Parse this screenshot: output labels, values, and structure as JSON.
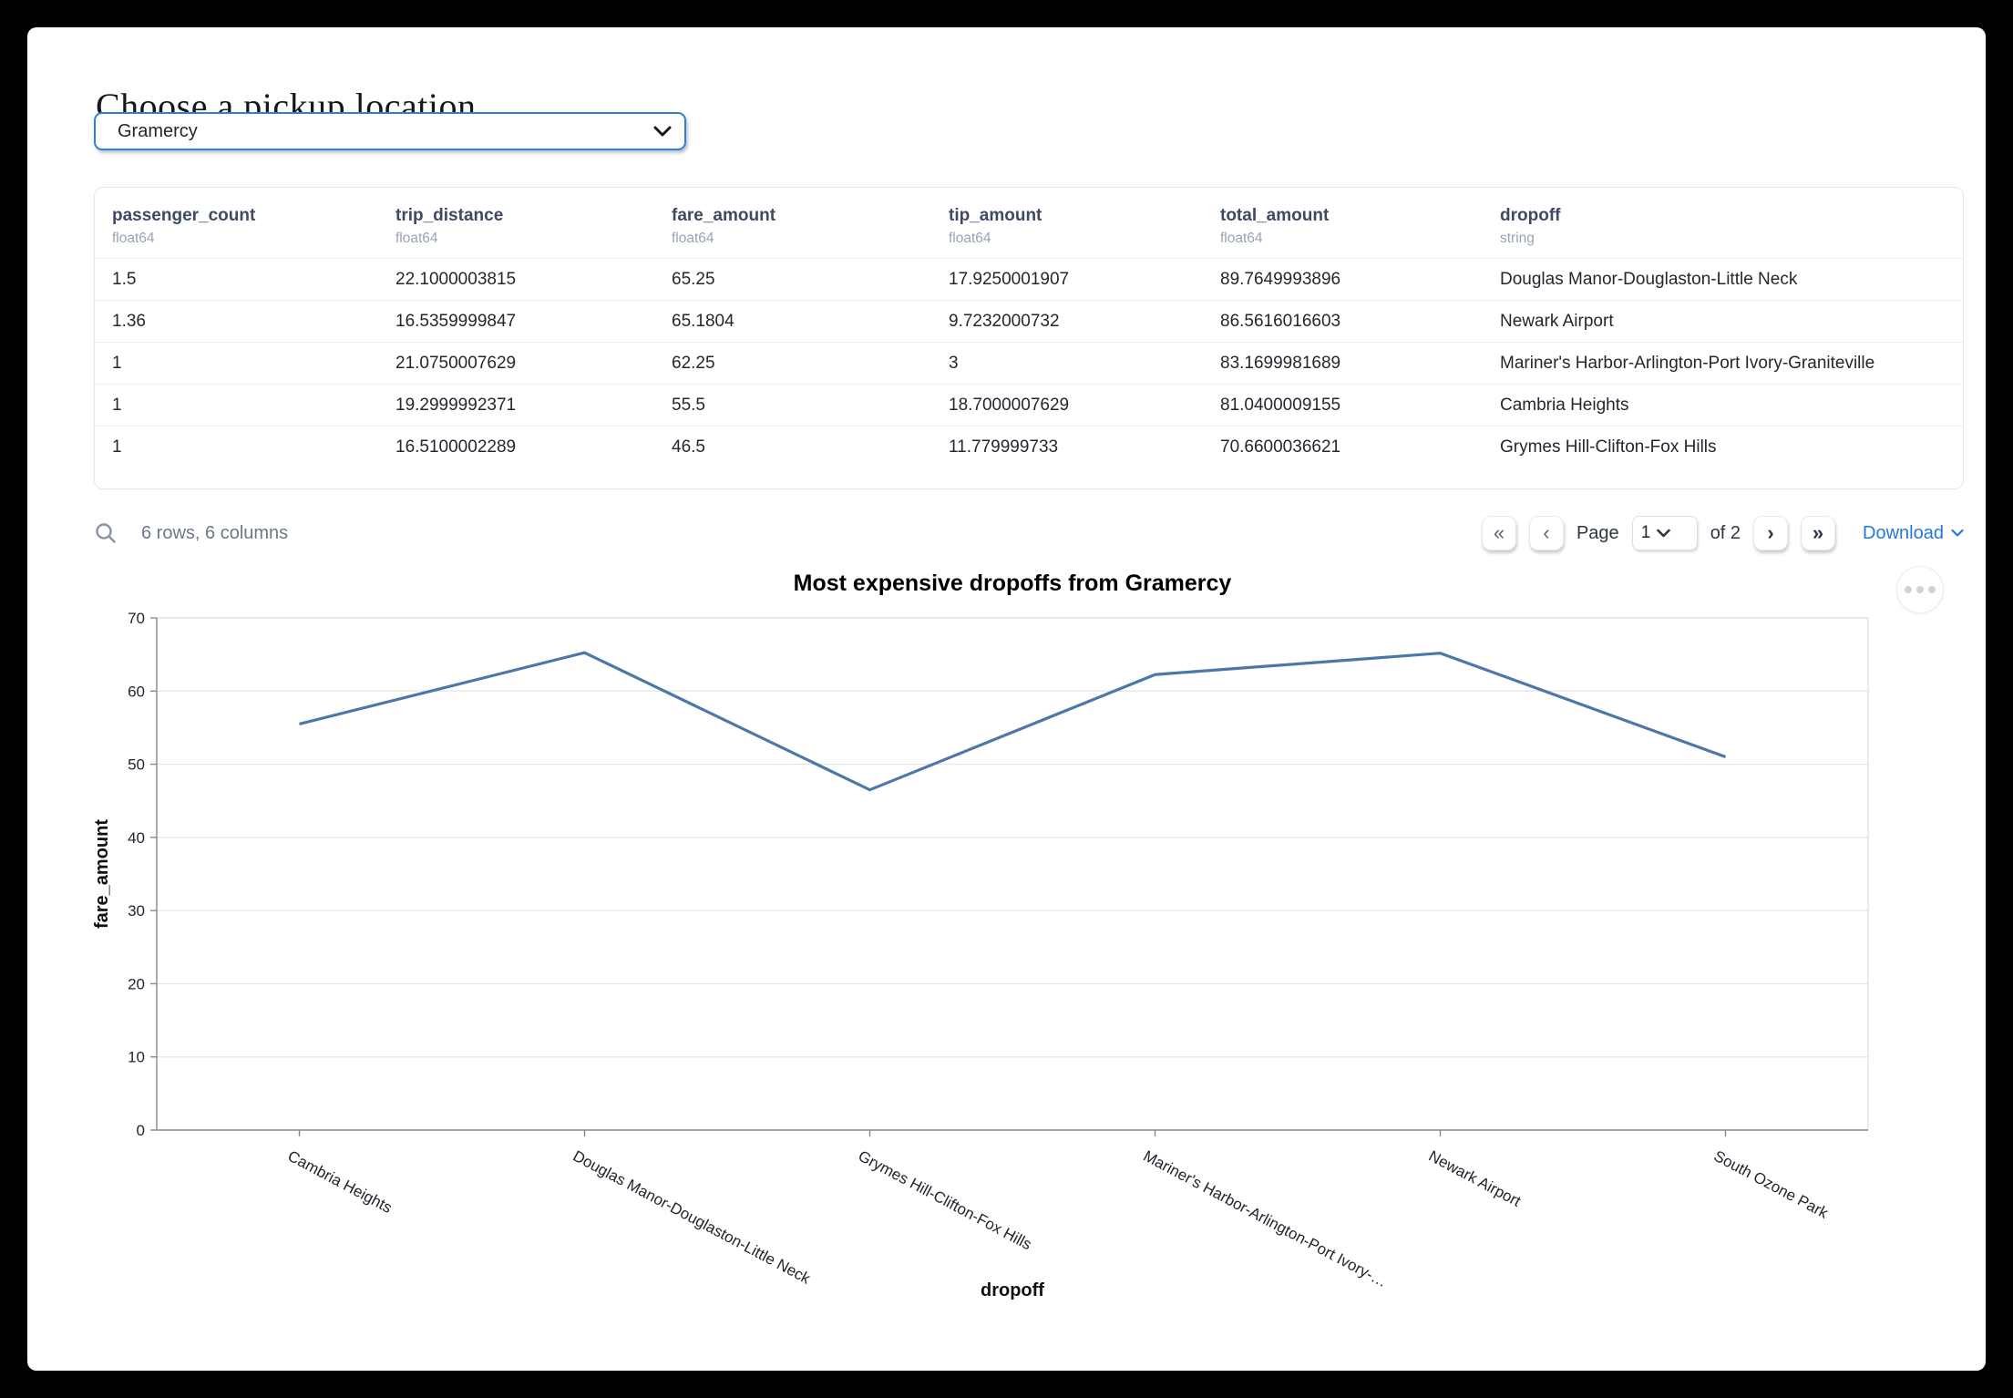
{
  "page": {
    "title": "Choose a pickup location"
  },
  "pickup_select": {
    "value": "Gramercy"
  },
  "table": {
    "columns": [
      {
        "name": "passenger_count",
        "dtype": "float64"
      },
      {
        "name": "trip_distance",
        "dtype": "float64"
      },
      {
        "name": "fare_amount",
        "dtype": "float64"
      },
      {
        "name": "tip_amount",
        "dtype": "float64"
      },
      {
        "name": "total_amount",
        "dtype": "float64"
      },
      {
        "name": "dropoff",
        "dtype": "string"
      }
    ],
    "rows": [
      [
        "1.5",
        "22.1000003815",
        "65.25",
        "17.9250001907",
        "89.7649993896",
        "Douglas Manor-Douglaston-Little Neck"
      ],
      [
        "1.36",
        "16.5359999847",
        "65.1804",
        "9.7232000732",
        "86.5616016603",
        "Newark Airport"
      ],
      [
        "1",
        "21.0750007629",
        "62.25",
        "3",
        "83.1699981689",
        "Mariner's Harbor-Arlington-Port Ivory-Graniteville"
      ],
      [
        "1",
        "19.2999992371",
        "55.5",
        "18.7000007629",
        "81.0400009155",
        "Cambria Heights"
      ],
      [
        "1",
        "16.5100002289",
        "46.5",
        "11.779999733",
        "70.6600036621",
        "Grymes Hill-Clifton-Fox Hills"
      ]
    ],
    "summary": "6 rows, 6 columns",
    "pagination": {
      "page_label": "Page",
      "current_page": "1",
      "of_label": "of 2",
      "download_label": "Download"
    }
  },
  "icons": {
    "first_page": "«",
    "prev_page": "‹",
    "next_page": "›",
    "last_page": "»"
  },
  "chart_data": {
    "type": "line",
    "title": "Most expensive dropoffs from Gramercy",
    "categories": [
      "Cambria Heights",
      "Douglas Manor-Douglaston-Little Neck",
      "Grymes Hill-Clifton-Fox Hills",
      "Mariner's Harbor-Arlington-Port Ivory-…",
      "Newark Airport",
      "South Ozone Park"
    ],
    "values": [
      55.5,
      65.25,
      46.5,
      62.25,
      65.1804,
      51
    ],
    "xlabel": "dropoff",
    "ylabel": "fare_amount",
    "ylim": [
      0,
      70
    ],
    "ytick_step": 10,
    "grid": true,
    "legend": "none",
    "line_color": "#4c78a8"
  },
  "colors": {
    "accent_blue": "#2f80d9",
    "link_blue": "#2477e0",
    "line_blue": "#4c78a8",
    "header_text": "#3e4a63",
    "muted_text": "#9aa3b4"
  }
}
